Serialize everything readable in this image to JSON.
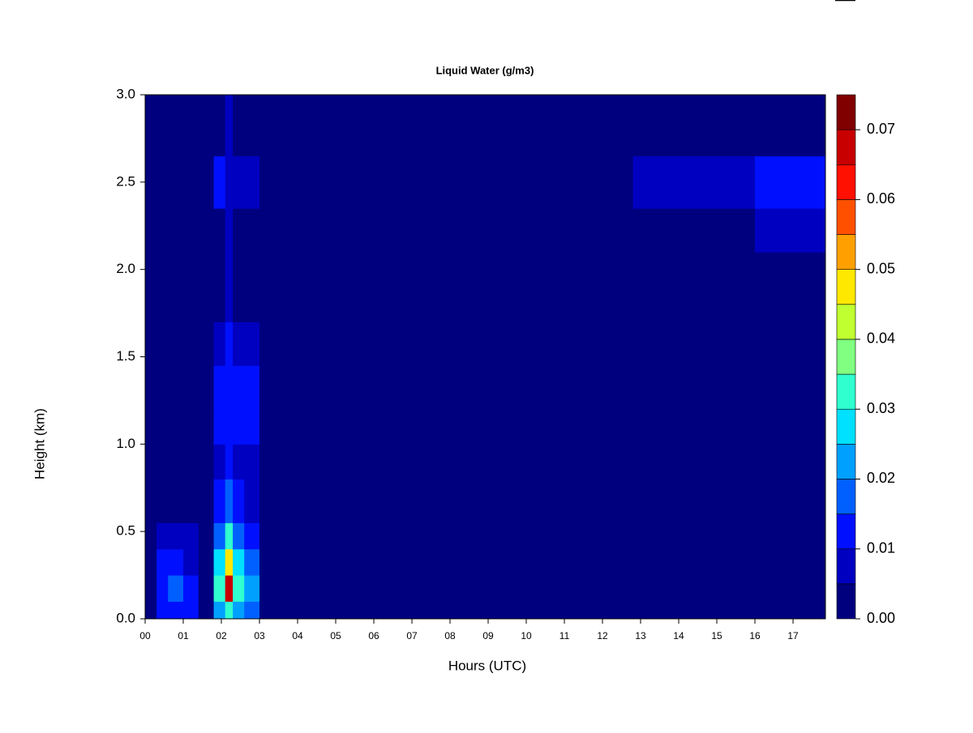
{
  "chart_data": {
    "type": "heatmap",
    "title": "Liquid Water (g/m3)",
    "x_label": "Hours (UTC)",
    "y_label": "Height (km)",
    "xlim": [
      0,
      17.85
    ],
    "ylim": [
      0,
      3.0
    ],
    "xticks": [
      {
        "value": 0,
        "label": "00"
      },
      {
        "value": 1,
        "label": "01"
      },
      {
        "value": 2,
        "label": "02"
      },
      {
        "value": 3,
        "label": "03"
      },
      {
        "value": 4,
        "label": "04"
      },
      {
        "value": 5,
        "label": "05"
      },
      {
        "value": 6,
        "label": "06"
      },
      {
        "value": 7,
        "label": "07"
      },
      {
        "value": 8,
        "label": "08"
      },
      {
        "value": 9,
        "label": "09"
      },
      10,
      11,
      12,
      13,
      14,
      15,
      16,
      17
    ],
    "yticks": [
      {
        "value": 0,
        "label": "0.0"
      },
      {
        "value": 0.5,
        "label": "0.5"
      },
      {
        "value": 1,
        "label": "1.0"
      },
      {
        "value": 1.5,
        "label": "1.5"
      },
      {
        "value": 2,
        "label": "2.0"
      },
      {
        "value": 2.5,
        "label": "2.5"
      },
      {
        "value": 3,
        "label": "3.0"
      }
    ],
    "x_bins": [
      0,
      0.3,
      0.6,
      1.0,
      1.4,
      1.8,
      2.1,
      2.3,
      2.6,
      3.0,
      12.8,
      13.2,
      14.5,
      16,
      16.8,
      17.85
    ],
    "y_bins": [
      0,
      0.1,
      0.25,
      0.4,
      0.55,
      0.8,
      1.0,
      1.2,
      1.45,
      1.7,
      2.1,
      2.35,
      2.65,
      3.0
    ],
    "z": [
      [
        0.002,
        0.012,
        0.012,
        0.01,
        0.002,
        0.02,
        0.03,
        0.02,
        0.015,
        0.002,
        0.002,
        0.002,
        0.002,
        0.002,
        0.002
      ],
      [
        0.002,
        0.014,
        0.015,
        0.012,
        0.002,
        0.03,
        0.065,
        0.03,
        0.022,
        0.002,
        0.002,
        0.002,
        0.002,
        0.002,
        0.002
      ],
      [
        0.002,
        0.01,
        0.01,
        0.008,
        0.002,
        0.025,
        0.045,
        0.025,
        0.018,
        0.002,
        0.002,
        0.002,
        0.002,
        0.002,
        0.002
      ],
      [
        0.002,
        0.006,
        0.006,
        0.006,
        0.002,
        0.018,
        0.03,
        0.015,
        0.012,
        0.002,
        0.002,
        0.002,
        0.002,
        0.002,
        0.002
      ],
      [
        0.002,
        0.002,
        0.002,
        0.002,
        0.002,
        0.012,
        0.018,
        0.01,
        0.008,
        0.002,
        0.002,
        0.002,
        0.002,
        0.002,
        0.002
      ],
      [
        0.002,
        0.002,
        0.002,
        0.002,
        0.002,
        0.008,
        0.012,
        0.007,
        0.006,
        0.002,
        0.002,
        0.002,
        0.002,
        0.002,
        0.002
      ],
      [
        0.002,
        0.002,
        0.002,
        0.002,
        0.002,
        0.012,
        0.014,
        0.01,
        0.01,
        0.002,
        0.002,
        0.002,
        0.002,
        0.002,
        0.002
      ],
      [
        0.002,
        0.002,
        0.002,
        0.002,
        0.002,
        0.01,
        0.012,
        0.01,
        0.01,
        0.002,
        0.002,
        0.002,
        0.002,
        0.002,
        0.002
      ],
      [
        0.002,
        0.002,
        0.002,
        0.002,
        0.002,
        0.007,
        0.01,
        0.006,
        0.006,
        0.002,
        0.002,
        0.002,
        0.002,
        0.002,
        0.002
      ],
      [
        0.002,
        0.002,
        0.002,
        0.002,
        0.002,
        0.002,
        0.008,
        0.002,
        0.002,
        0.002,
        0.002,
        0.002,
        0.002,
        0.002,
        0.002
      ],
      [
        0.002,
        0.002,
        0.002,
        0.002,
        0.002,
        0.002,
        0.006,
        0.002,
        0.002,
        0.002,
        0.002,
        0.002,
        0.002,
        0.007,
        0.008
      ],
      [
        0.002,
        0.002,
        0.002,
        0.002,
        0.002,
        0.011,
        0.008,
        0.008,
        0.008,
        0.002,
        0.006,
        0.008,
        0.009,
        0.01,
        0.011
      ],
      [
        0.002,
        0.002,
        0.002,
        0.002,
        0.002,
        0.002,
        0.006,
        0.002,
        0.002,
        0.002,
        0.002,
        0.002,
        0.002,
        0.002,
        0.002
      ]
    ],
    "levels": [
      0,
      0.005,
      0.01,
      0.015,
      0.02,
      0.025,
      0.03,
      0.035,
      0.04,
      0.045,
      0.05,
      0.055,
      0.06,
      0.065,
      0.07,
      0.075
    ],
    "colors": [
      "#00007f",
      "#0000c0",
      "#0010ff",
      "#0060ff",
      "#00a0ff",
      "#00e0ff",
      "#30ffd0",
      "#80ff80",
      "#c0ff30",
      "#ffe800",
      "#ffa000",
      "#ff5000",
      "#ff1000",
      "#c80000",
      "#800000"
    ],
    "colorbar_ticks": [
      {
        "value": 0,
        "label": "0.00"
      },
      {
        "value": 0.01,
        "label": "0.01"
      },
      {
        "value": 0.02,
        "label": "0.02"
      },
      {
        "value": 0.03,
        "label": "0.03"
      },
      {
        "value": 0.04,
        "label": "0.04"
      },
      {
        "value": 0.05,
        "label": "0.05"
      },
      {
        "value": 0.06,
        "label": "0.06"
      },
      {
        "value": 0.07,
        "label": "0.07"
      }
    ]
  }
}
